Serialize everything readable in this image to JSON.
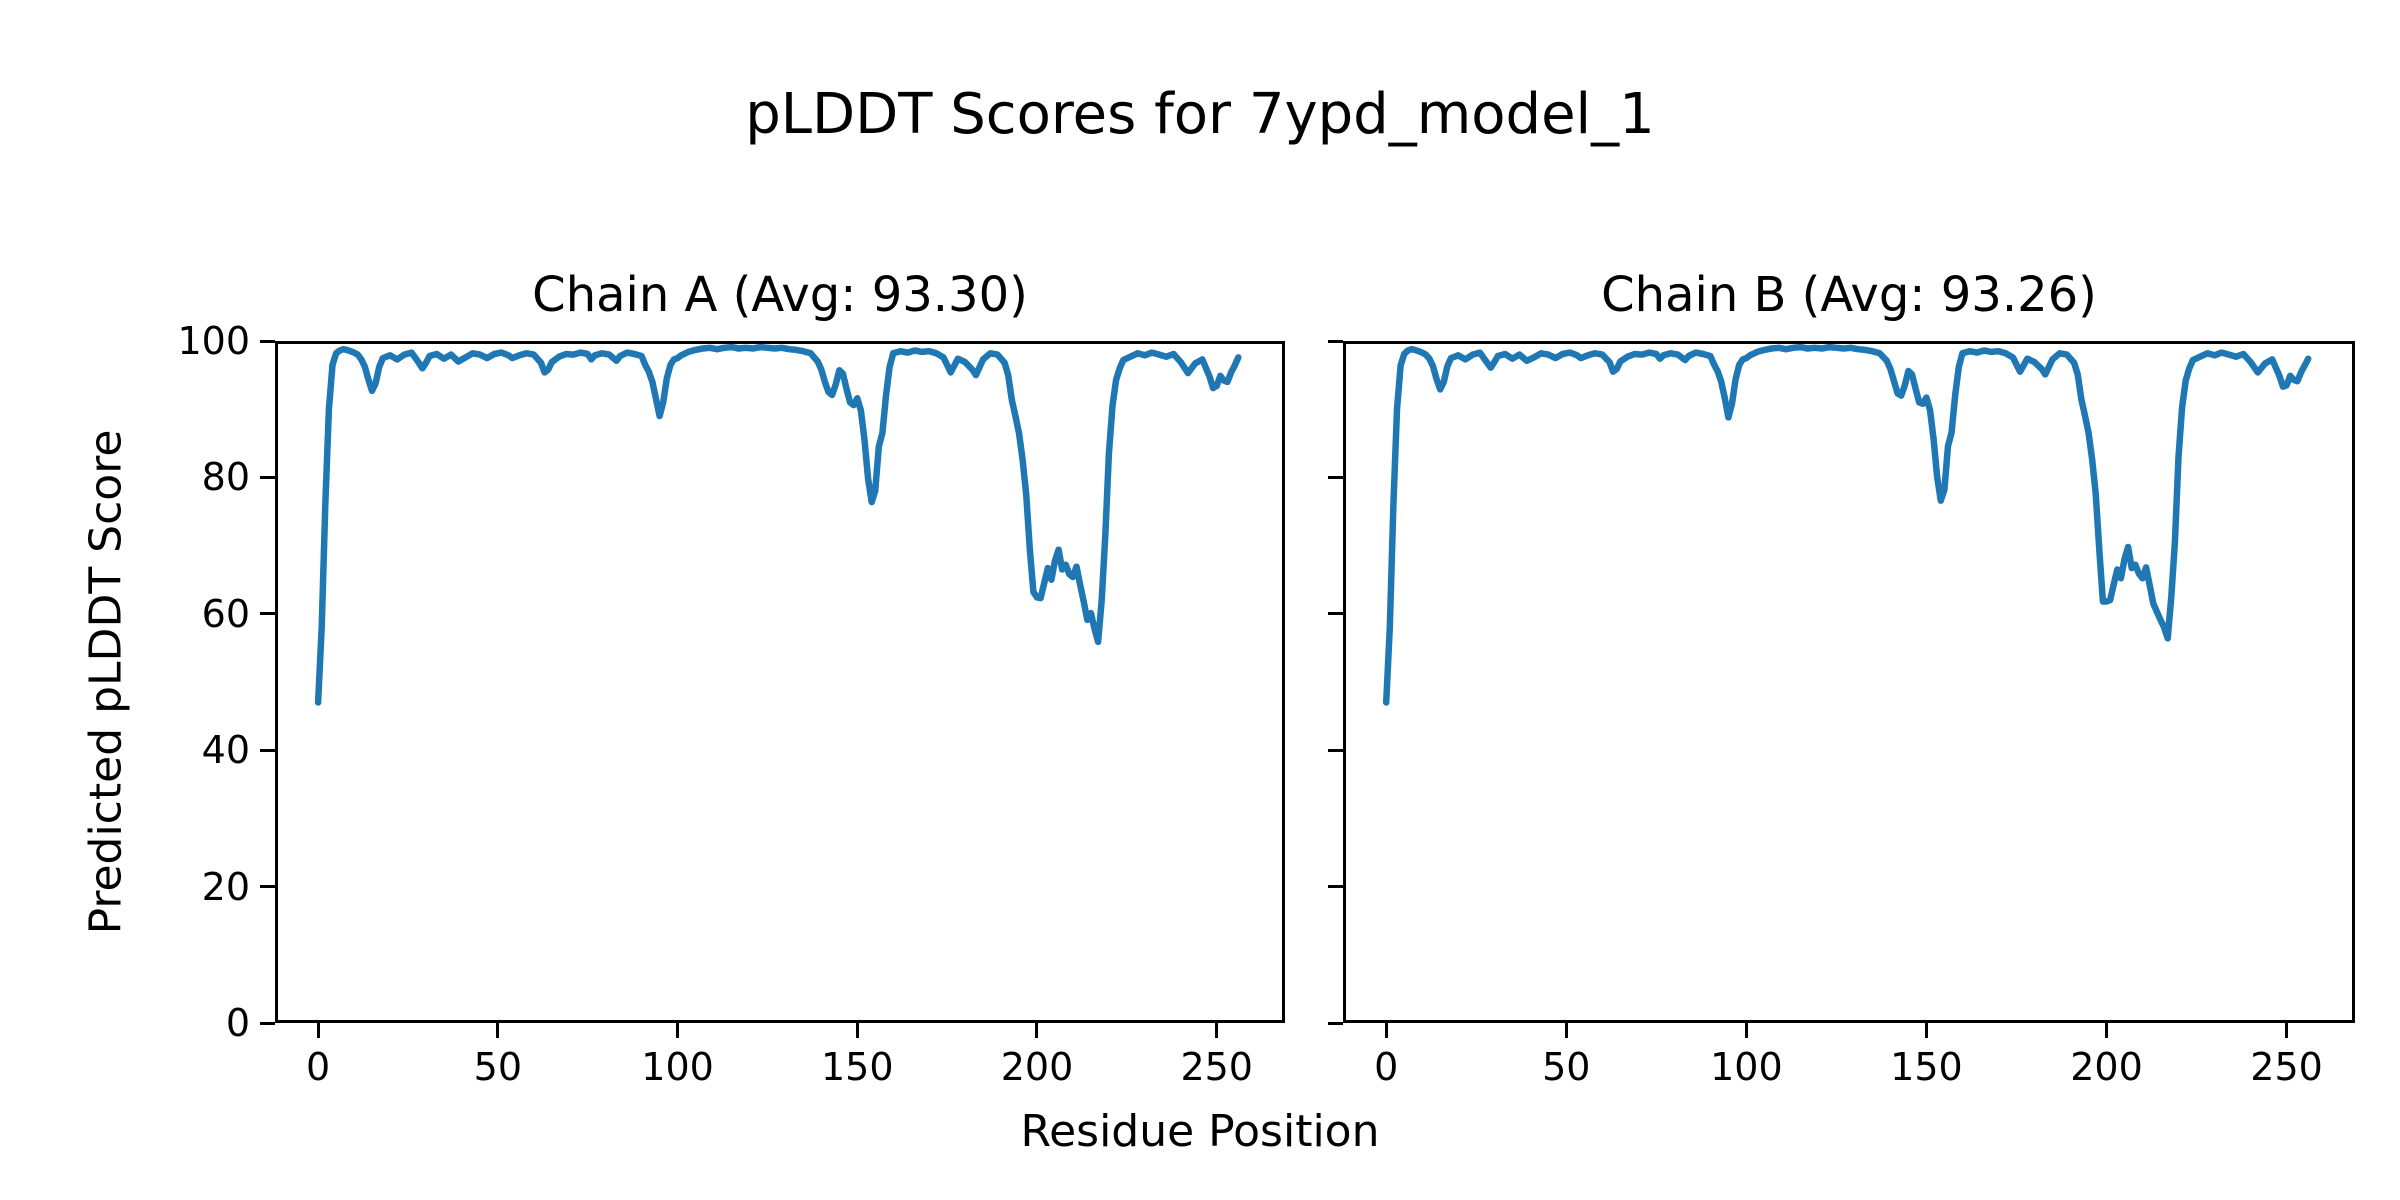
{
  "figure": {
    "suptitle": "pLDDT Scores for 7ypd_model_1",
    "xlabel": "Residue Position",
    "ylabel": "Predicted pLDDT Score"
  },
  "chart_data": [
    {
      "type": "line",
      "title": "Chain A (Avg: 93.30)",
      "chain": "A",
      "avg": 93.3,
      "xlabel": "Residue Position",
      "ylabel": "Predicted pLDDT Score",
      "line_color": "#1f77b4",
      "xlim": [
        -12,
        269
      ],
      "ylim": [
        0,
        100
      ],
      "xticks": [
        0,
        50,
        100,
        150,
        200,
        250
      ],
      "yticks": [
        0,
        20,
        40,
        60,
        80,
        100
      ],
      "show_ytick_labels": true,
      "grid": false,
      "legend": null,
      "points": [
        [
          0,
          47.0
        ],
        [
          1,
          58.0
        ],
        [
          2,
          76.0
        ],
        [
          3,
          90.0
        ],
        [
          4,
          96.5
        ],
        [
          5,
          98.2
        ],
        [
          6,
          98.6
        ],
        [
          7,
          98.8
        ],
        [
          8,
          98.7
        ],
        [
          9,
          98.5
        ],
        [
          10,
          98.3
        ],
        [
          11,
          98.0
        ],
        [
          12,
          97.3
        ],
        [
          13,
          96.2
        ],
        [
          14,
          94.3
        ],
        [
          15,
          92.7
        ],
        [
          16,
          93.8
        ],
        [
          17,
          96.2
        ],
        [
          18,
          97.5
        ],
        [
          20,
          97.9
        ],
        [
          22,
          97.3
        ],
        [
          24,
          98.0
        ],
        [
          26,
          98.3
        ],
        [
          28,
          96.8
        ],
        [
          29,
          96.0
        ],
        [
          30,
          96.8
        ],
        [
          31,
          97.8
        ],
        [
          33,
          98.1
        ],
        [
          35,
          97.4
        ],
        [
          37,
          98.0
        ],
        [
          39,
          97.0
        ],
        [
          41,
          97.6
        ],
        [
          43,
          98.2
        ],
        [
          45,
          98.0
        ],
        [
          47,
          97.5
        ],
        [
          49,
          98.1
        ],
        [
          51,
          98.3
        ],
        [
          53,
          97.9
        ],
        [
          54,
          97.5
        ],
        [
          56,
          97.9
        ],
        [
          58,
          98.2
        ],
        [
          60,
          98.0
        ],
        [
          62,
          96.8
        ],
        [
          63,
          95.4
        ],
        [
          64,
          95.8
        ],
        [
          65,
          96.9
        ],
        [
          67,
          97.7
        ],
        [
          69,
          98.1
        ],
        [
          71,
          98.0
        ],
        [
          73,
          98.3
        ],
        [
          75,
          98.1
        ],
        [
          76,
          97.3
        ],
        [
          77,
          97.9
        ],
        [
          79,
          98.2
        ],
        [
          81,
          98.0
        ],
        [
          83,
          97.1
        ],
        [
          84,
          97.8
        ],
        [
          86,
          98.3
        ],
        [
          88,
          98.1
        ],
        [
          90,
          97.8
        ],
        [
          91,
          96.5
        ],
        [
          92,
          95.5
        ],
        [
          93,
          94.0
        ],
        [
          94,
          91.5
        ],
        [
          95,
          89.0
        ],
        [
          96,
          91.0
        ],
        [
          97,
          94.5
        ],
        [
          98,
          96.5
        ],
        [
          99,
          97.3
        ],
        [
          100,
          97.5
        ],
        [
          101,
          97.9
        ],
        [
          103,
          98.4
        ],
        [
          105,
          98.7
        ],
        [
          107,
          98.9
        ],
        [
          109,
          99.0
        ],
        [
          111,
          98.8
        ],
        [
          113,
          99.0
        ],
        [
          115,
          99.1
        ],
        [
          117,
          98.9
        ],
        [
          119,
          99.0
        ],
        [
          121,
          98.9
        ],
        [
          123,
          99.1
        ],
        [
          125,
          99.0
        ],
        [
          127,
          98.9
        ],
        [
          129,
          99.0
        ],
        [
          131,
          98.8
        ],
        [
          133,
          98.7
        ],
        [
          135,
          98.5
        ],
        [
          137,
          98.2
        ],
        [
          139,
          97.0
        ],
        [
          140,
          95.8
        ],
        [
          141,
          94.0
        ],
        [
          142,
          92.5
        ],
        [
          143,
          92.1
        ],
        [
          144,
          93.6
        ],
        [
          145,
          95.7
        ],
        [
          146,
          95.2
        ],
        [
          147,
          93.0
        ],
        [
          148,
          91.0
        ],
        [
          149,
          90.6
        ],
        [
          150,
          91.6
        ],
        [
          151,
          89.8
        ],
        [
          152,
          85.5
        ],
        [
          153,
          79.8
        ],
        [
          154,
          76.4
        ],
        [
          155,
          78.0
        ],
        [
          156,
          84.5
        ],
        [
          157,
          86.5
        ],
        [
          158,
          92.0
        ],
        [
          159,
          96.2
        ],
        [
          160,
          98.2
        ],
        [
          162,
          98.5
        ],
        [
          164,
          98.3
        ],
        [
          166,
          98.6
        ],
        [
          168,
          98.4
        ],
        [
          170,
          98.5
        ],
        [
          172,
          98.2
        ],
        [
          174,
          97.6
        ],
        [
          176,
          95.4
        ],
        [
          178,
          97.4
        ],
        [
          180,
          96.9
        ],
        [
          182,
          95.8
        ],
        [
          183,
          95.0
        ],
        [
          185,
          97.3
        ],
        [
          187,
          98.2
        ],
        [
          189,
          98.0
        ],
        [
          191,
          96.8
        ],
        [
          192,
          95.0
        ],
        [
          193,
          91.4
        ],
        [
          194,
          89.0
        ],
        [
          195,
          86.5
        ],
        [
          196,
          82.6
        ],
        [
          197,
          77.5
        ],
        [
          198,
          69.5
        ],
        [
          199,
          63.2
        ],
        [
          200,
          62.4
        ],
        [
          201,
          62.3
        ],
        [
          202,
          64.5
        ],
        [
          203,
          66.7
        ],
        [
          204,
          65.0
        ],
        [
          205,
          67.8
        ],
        [
          206,
          69.4
        ],
        [
          207,
          66.5
        ],
        [
          208,
          67.2
        ],
        [
          209,
          65.8
        ],
        [
          210,
          65.4
        ],
        [
          211,
          66.9
        ],
        [
          212,
          64.3
        ],
        [
          213,
          61.8
        ],
        [
          214,
          59.1
        ],
        [
          215,
          60.1
        ],
        [
          216,
          57.8
        ],
        [
          217,
          55.9
        ],
        [
          218,
          62.0
        ],
        [
          219,
          71.5
        ],
        [
          220,
          83.5
        ],
        [
          221,
          90.5
        ],
        [
          222,
          94.3
        ],
        [
          223,
          96.0
        ],
        [
          224,
          97.2
        ],
        [
          226,
          97.7
        ],
        [
          228,
          98.2
        ],
        [
          230,
          97.9
        ],
        [
          232,
          98.3
        ],
        [
          234,
          98.0
        ],
        [
          236,
          97.7
        ],
        [
          238,
          98.1
        ],
        [
          240,
          96.9
        ],
        [
          242,
          95.3
        ],
        [
          244,
          96.7
        ],
        [
          246,
          97.3
        ],
        [
          248,
          94.8
        ],
        [
          249,
          93.1
        ],
        [
          250,
          93.4
        ],
        [
          251,
          94.9
        ],
        [
          252,
          94.2
        ],
        [
          253,
          94.0
        ],
        [
          254,
          95.4
        ],
        [
          255,
          96.4
        ],
        [
          256,
          97.6
        ]
      ]
    },
    {
      "type": "line",
      "title": "Chain B (Avg: 93.26)",
      "chain": "B",
      "avg": 93.26,
      "xlabel": "Residue Position",
      "ylabel": "Predicted pLDDT Score",
      "line_color": "#1f77b4",
      "xlim": [
        -12,
        269
      ],
      "ylim": [
        0,
        100
      ],
      "xticks": [
        0,
        50,
        100,
        150,
        200,
        250
      ],
      "yticks": [
        0,
        20,
        40,
        60,
        80,
        100
      ],
      "show_ytick_labels": false,
      "grid": false,
      "legend": null,
      "points": [
        [
          0,
          47.0
        ],
        [
          1,
          58.0
        ],
        [
          2,
          76.0
        ],
        [
          3,
          90.0
        ],
        [
          4,
          96.4
        ],
        [
          5,
          98.1
        ],
        [
          6,
          98.6
        ],
        [
          7,
          98.8
        ],
        [
          8,
          98.7
        ],
        [
          9,
          98.5
        ],
        [
          10,
          98.3
        ],
        [
          11,
          98.0
        ],
        [
          12,
          97.4
        ],
        [
          13,
          96.3
        ],
        [
          14,
          94.4
        ],
        [
          15,
          92.9
        ],
        [
          16,
          94.0
        ],
        [
          17,
          96.3
        ],
        [
          18,
          97.5
        ],
        [
          20,
          97.9
        ],
        [
          22,
          97.3
        ],
        [
          24,
          98.0
        ],
        [
          26,
          98.3
        ],
        [
          28,
          96.8
        ],
        [
          29,
          96.1
        ],
        [
          30,
          96.9
        ],
        [
          31,
          97.8
        ],
        [
          33,
          98.1
        ],
        [
          35,
          97.4
        ],
        [
          37,
          98.0
        ],
        [
          39,
          97.1
        ],
        [
          41,
          97.6
        ],
        [
          43,
          98.2
        ],
        [
          45,
          98.0
        ],
        [
          47,
          97.5
        ],
        [
          49,
          98.1
        ],
        [
          51,
          98.3
        ],
        [
          53,
          97.9
        ],
        [
          54,
          97.5
        ],
        [
          56,
          97.9
        ],
        [
          58,
          98.2
        ],
        [
          60,
          98.0
        ],
        [
          62,
          96.9
        ],
        [
          63,
          95.5
        ],
        [
          64,
          95.9
        ],
        [
          65,
          97.0
        ],
        [
          67,
          97.7
        ],
        [
          69,
          98.1
        ],
        [
          71,
          98.0
        ],
        [
          73,
          98.3
        ],
        [
          75,
          98.1
        ],
        [
          76,
          97.4
        ],
        [
          77,
          97.9
        ],
        [
          79,
          98.2
        ],
        [
          81,
          98.0
        ],
        [
          83,
          97.2
        ],
        [
          84,
          97.8
        ],
        [
          86,
          98.3
        ],
        [
          88,
          98.1
        ],
        [
          90,
          97.8
        ],
        [
          91,
          96.6
        ],
        [
          92,
          95.6
        ],
        [
          93,
          94.1
        ],
        [
          94,
          91.6
        ],
        [
          95,
          88.8
        ],
        [
          96,
          90.8
        ],
        [
          97,
          94.4
        ],
        [
          98,
          96.5
        ],
        [
          99,
          97.3
        ],
        [
          100,
          97.5
        ],
        [
          101,
          97.9
        ],
        [
          103,
          98.4
        ],
        [
          105,
          98.7
        ],
        [
          107,
          98.9
        ],
        [
          109,
          99.0
        ],
        [
          111,
          98.8
        ],
        [
          113,
          99.0
        ],
        [
          115,
          99.1
        ],
        [
          117,
          98.9
        ],
        [
          119,
          99.0
        ],
        [
          121,
          98.9
        ],
        [
          123,
          99.1
        ],
        [
          125,
          99.0
        ],
        [
          127,
          98.9
        ],
        [
          129,
          99.0
        ],
        [
          131,
          98.8
        ],
        [
          133,
          98.7
        ],
        [
          135,
          98.5
        ],
        [
          137,
          98.2
        ],
        [
          139,
          97.1
        ],
        [
          140,
          95.9
        ],
        [
          141,
          94.1
        ],
        [
          142,
          92.3
        ],
        [
          143,
          92.0
        ],
        [
          144,
          93.5
        ],
        [
          145,
          95.6
        ],
        [
          146,
          95.1
        ],
        [
          147,
          93.0
        ],
        [
          148,
          91.0
        ],
        [
          149,
          90.8
        ],
        [
          150,
          91.7
        ],
        [
          151,
          89.9
        ],
        [
          152,
          85.6
        ],
        [
          153,
          80.0
        ],
        [
          154,
          76.6
        ],
        [
          155,
          78.2
        ],
        [
          156,
          84.6
        ],
        [
          157,
          86.6
        ],
        [
          158,
          92.1
        ],
        [
          159,
          96.2
        ],
        [
          160,
          98.2
        ],
        [
          162,
          98.5
        ],
        [
          164,
          98.3
        ],
        [
          166,
          98.6
        ],
        [
          168,
          98.4
        ],
        [
          170,
          98.5
        ],
        [
          172,
          98.2
        ],
        [
          174,
          97.6
        ],
        [
          176,
          95.5
        ],
        [
          178,
          97.4
        ],
        [
          180,
          96.9
        ],
        [
          182,
          95.9
        ],
        [
          183,
          95.1
        ],
        [
          185,
          97.3
        ],
        [
          187,
          98.2
        ],
        [
          189,
          98.0
        ],
        [
          191,
          96.8
        ],
        [
          192,
          95.1
        ],
        [
          193,
          91.5
        ],
        [
          194,
          89.1
        ],
        [
          195,
          86.6
        ],
        [
          196,
          82.7
        ],
        [
          197,
          77.6
        ],
        [
          198,
          69.4
        ],
        [
          199,
          61.8
        ],
        [
          200,
          61.8
        ],
        [
          201,
          62.0
        ],
        [
          202,
          64.3
        ],
        [
          203,
          66.5
        ],
        [
          204,
          65.2
        ],
        [
          205,
          68.0
        ],
        [
          206,
          69.8
        ],
        [
          207,
          66.7
        ],
        [
          208,
          67.2
        ],
        [
          209,
          65.9
        ],
        [
          210,
          65.2
        ],
        [
          211,
          66.8
        ],
        [
          212,
          64.2
        ],
        [
          213,
          61.5
        ],
        [
          214,
          60.3
        ],
        [
          215,
          59.1
        ],
        [
          216,
          58.0
        ],
        [
          217,
          56.4
        ],
        [
          218,
          62.5
        ],
        [
          219,
          70.5
        ],
        [
          220,
          83.0
        ],
        [
          221,
          90.3
        ],
        [
          222,
          94.2
        ],
        [
          223,
          96.0
        ],
        [
          224,
          97.2
        ],
        [
          226,
          97.7
        ],
        [
          228,
          98.2
        ],
        [
          230,
          97.9
        ],
        [
          232,
          98.3
        ],
        [
          234,
          98.0
        ],
        [
          236,
          97.7
        ],
        [
          238,
          98.1
        ],
        [
          240,
          96.9
        ],
        [
          242,
          95.4
        ],
        [
          244,
          96.7
        ],
        [
          246,
          97.3
        ],
        [
          248,
          94.9
        ],
        [
          249,
          93.3
        ],
        [
          250,
          93.5
        ],
        [
          251,
          94.9
        ],
        [
          252,
          94.3
        ],
        [
          253,
          94.1
        ],
        [
          254,
          95.4
        ],
        [
          255,
          96.4
        ],
        [
          256,
          97.4
        ]
      ]
    }
  ]
}
